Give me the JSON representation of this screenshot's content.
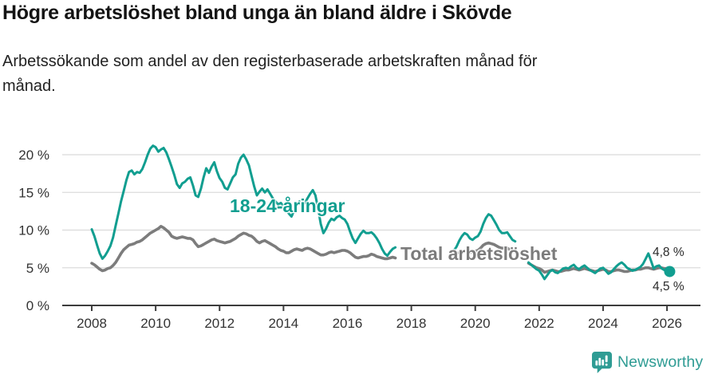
{
  "header": {
    "title": "Högre arbetslöshet bland unga än bland äldre i Skövde",
    "subtitle_line1": "Arbetssökande som andel av den registerbaserade arbetskraften månad för",
    "subtitle_line2": "månad."
  },
  "colors": {
    "teal": "#119E90",
    "gray": "#7C7C7C",
    "grid": "#DBDBDB",
    "axis": "#3C3C3C",
    "ticktext": "#333333",
    "title": "#141414",
    "subtitle": "#222222",
    "endtext": "#2B2B2B",
    "brand": "#2F9C94"
  },
  "footer": {
    "brand_name": "Newsworthy",
    "logo_icon": "speech-bubble-bar-chart-icon"
  },
  "chart_data": {
    "type": "line",
    "title": "Högre arbetslöshet bland unga än bland äldre i Skövde",
    "subtitle": "Arbetssökande som andel av den registerbaserade arbetskraften månad för månad.",
    "x_axis": {
      "ticks": [
        2008,
        2010,
        2012,
        2014,
        2016,
        2018,
        2020,
        2022,
        2024,
        2026
      ],
      "lim": [
        2007.1,
        2027.0
      ]
    },
    "y_axis": {
      "tick_values": [
        0,
        5,
        10,
        15,
        20
      ],
      "tick_labels": [
        "0 %",
        "5 %",
        "10 %",
        "15 %",
        "20 %"
      ],
      "lim": [
        0,
        22.5
      ],
      "grid": true
    },
    "unit": "percent",
    "frequency": "monthly",
    "series": [
      {
        "name": "18-24-åringar",
        "color": "#119E90",
        "end_label": "4,5 %",
        "end_value": 4.5,
        "end_dot": true,
        "segments": [
          {
            "start": 2008.0,
            "step": 0.08333,
            "values": [
              10.1,
              9.2,
              8.0,
              6.9,
              6.2,
              6.6,
              7.2,
              7.9,
              9.0,
              10.6,
              12.2,
              13.8,
              15.2,
              16.6,
              17.7,
              17.9,
              17.4,
              17.7,
              17.6,
              18.1,
              19.0,
              20.0,
              20.8,
              21.2,
              21.0,
              20.4,
              20.7,
              20.9,
              20.3,
              19.4,
              18.4,
              17.3,
              16.1,
              15.6,
              16.2,
              16.4,
              16.8,
              17.0,
              15.9,
              14.6,
              14.4,
              15.5,
              17.0,
              18.2,
              17.6,
              18.4,
              19.0,
              17.8,
              16.9,
              16.4,
              15.6,
              15.4,
              16.2,
              17.0,
              17.4,
              18.8,
              19.6,
              20.0,
              19.4,
              18.6,
              17.2,
              15.8,
              14.6,
              15.1,
              15.5,
              15.0,
              15.4,
              14.8,
              14.2,
              13.8,
              13.4,
              13.6,
              13.2,
              12.8,
              12.2,
              11.8,
              12.6,
              13.4,
              13.8,
              13.2,
              13.6,
              14.2,
              14.8,
              15.3,
              14.6,
              12.8,
              10.8,
              9.6,
              10.2,
              11.0,
              11.5,
              11.3,
              11.7,
              11.9,
              11.6,
              11.4,
              10.8,
              9.8,
              8.9,
              8.3,
              8.9,
              9.5,
              9.9,
              9.6,
              9.6,
              9.7,
              9.4,
              8.9,
              8.3,
              7.5,
              6.9,
              6.6,
              7.1,
              7.5,
              7.7
            ]
          },
          {
            "start": 2019.333,
            "step": 0.08333,
            "values": [
              7.3,
              7.8,
              8.6,
              9.2,
              9.6,
              9.4,
              8.9,
              8.7,
              9.0,
              9.2,
              9.8,
              10.8,
              11.6,
              12.1,
              11.9,
              11.3,
              10.7,
              10.0,
              9.6,
              9.6,
              9.7,
              9.2,
              8.7,
              8.5
            ]
          },
          {
            "start": 2021.667,
            "step": 0.08333,
            "values": [
              5.7,
              5.4,
              5.1,
              4.8,
              4.6,
              4.1,
              3.5,
              4.0,
              4.5,
              4.7,
              4.4,
              4.3,
              4.6,
              4.9,
              5.0,
              4.9,
              5.2,
              5.4,
              5.0,
              4.8,
              5.1,
              5.3,
              5.0,
              4.7,
              4.5,
              4.3,
              4.6,
              4.9,
              5.0,
              4.6,
              4.2,
              4.4,
              4.8,
              5.2,
              5.5,
              5.7,
              5.4,
              5.0,
              4.8,
              4.6,
              4.7,
              4.9,
              5.1,
              5.5,
              6.2,
              6.9,
              5.9,
              4.9,
              5.2,
              5.3,
              4.9,
              4.7,
              4.6,
              4.5
            ]
          }
        ]
      },
      {
        "name": "Total arbetslöshet",
        "color": "#7C7C7C",
        "end_label": "4,8 %",
        "end_value": 4.8,
        "end_dot": false,
        "segments": [
          {
            "start": 2008.0,
            "step": 0.08333,
            "values": [
              5.6,
              5.4,
              5.1,
              4.8,
              4.6,
              4.7,
              4.9,
              5.0,
              5.3,
              5.7,
              6.3,
              6.9,
              7.4,
              7.7,
              8.0,
              8.1,
              8.2,
              8.4,
              8.5,
              8.7,
              9.0,
              9.3,
              9.6,
              9.8,
              10.0,
              10.2,
              10.5,
              10.3,
              10.0,
              9.7,
              9.2,
              9.0,
              8.9,
              9.0,
              9.1,
              9.0,
              8.9,
              8.9,
              8.7,
              8.2,
              7.8,
              7.9,
              8.1,
              8.3,
              8.5,
              8.7,
              8.8,
              8.6,
              8.5,
              8.4,
              8.3,
              8.4,
              8.5,
              8.7,
              8.9,
              9.2,
              9.4,
              9.6,
              9.5,
              9.3,
              9.2,
              8.9,
              8.5,
              8.3,
              8.5,
              8.6,
              8.4,
              8.2,
              8.0,
              7.8,
              7.5,
              7.3,
              7.2,
              7.0,
              7.0,
              7.2,
              7.4,
              7.5,
              7.4,
              7.3,
              7.5,
              7.6,
              7.5,
              7.3,
              7.1,
              6.9,
              6.7,
              6.7,
              6.8,
              7.0,
              7.1,
              7.0,
              7.1,
              7.2,
              7.3,
              7.3,
              7.2,
              7.0,
              6.7,
              6.4,
              6.3,
              6.4,
              6.5,
              6.5,
              6.6,
              6.8,
              6.7,
              6.5,
              6.4,
              6.3,
              6.2,
              6.2,
              6.3,
              6.4,
              6.3
            ]
          },
          {
            "start": 2019.333,
            "step": 0.08333,
            "values": [
              6.8,
              6.9,
              7.0,
              7.1,
              7.2,
              7.1,
              7.0,
              7.1,
              7.2,
              7.3,
              7.6,
              8.0,
              8.2,
              8.3,
              8.2,
              8.1,
              7.9,
              7.7,
              7.6,
              7.6,
              7.6,
              7.4,
              7.2,
              7.1
            ]
          },
          {
            "start": 2021.667,
            "step": 0.08333,
            "values": [
              5.6,
              5.4,
              5.2,
              5.0,
              4.9,
              4.7,
              4.4,
              4.5,
              4.6,
              4.7,
              4.6,
              4.5,
              4.5,
              4.6,
              4.7,
              4.7,
              4.8,
              4.9,
              4.8,
              4.7,
              4.8,
              4.9,
              4.8,
              4.7,
              4.6,
              4.5,
              4.6,
              4.7,
              4.8,
              4.7,
              4.5,
              4.5,
              4.6,
              4.7,
              4.7,
              4.6,
              4.5,
              4.5,
              4.6,
              4.7,
              4.7,
              4.8,
              4.8,
              4.9,
              5.0,
              5.0,
              4.9,
              4.8,
              4.9,
              5.0,
              5.0,
              4.9,
              4.9,
              4.8
            ]
          }
        ]
      }
    ]
  }
}
